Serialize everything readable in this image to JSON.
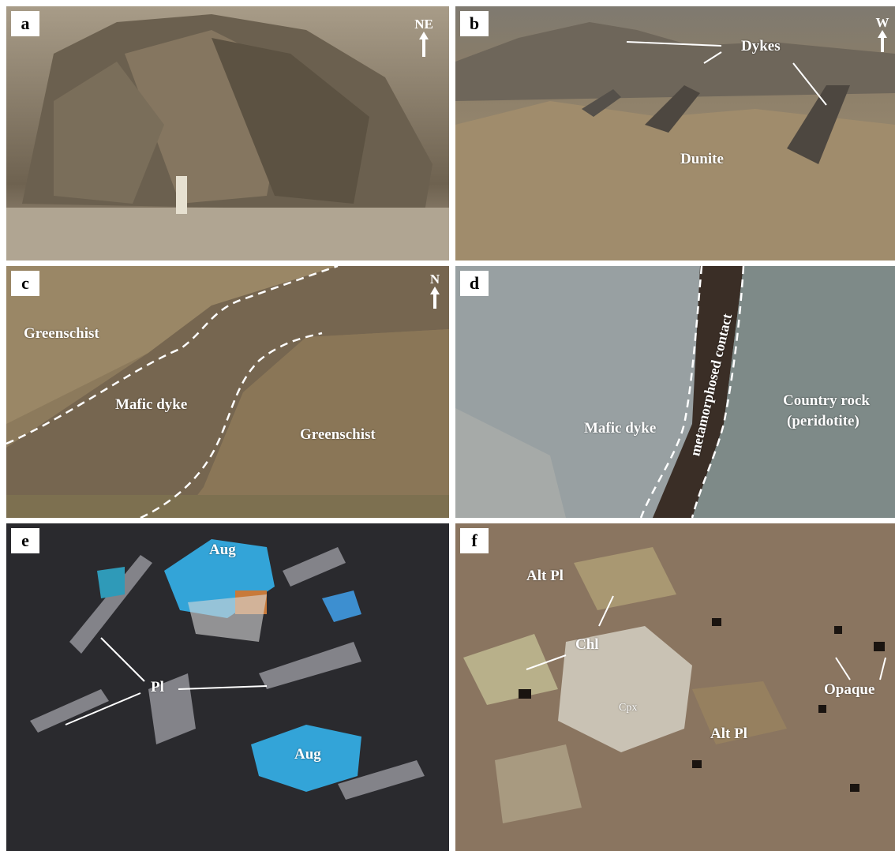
{
  "panels": {
    "a": {
      "letter": "a",
      "north": "NE"
    },
    "b": {
      "letter": "b",
      "north": "W",
      "labels": {
        "dykes": "Dykes",
        "dunite": "Dunite"
      }
    },
    "c": {
      "letter": "c",
      "north": "N",
      "labels": {
        "greenschist_top": "Greenschist",
        "mafic_dyke": "Mafic dyke",
        "greenschist_bottom": "Greenschist"
      }
    },
    "d": {
      "letter": "d",
      "labels": {
        "mafic_dyke": "Mafic dyke",
        "contact": "metamorphosed contact",
        "country_rock_1": "Country rock",
        "country_rock_2": "(peridotite)"
      }
    },
    "e": {
      "letter": "e",
      "labels": {
        "aug_top": "Aug",
        "pl": "Pl",
        "aug_bottom": "Aug"
      }
    },
    "f": {
      "letter": "f",
      "labels": {
        "alt_pl_top": "Alt Pl",
        "chl": "Chl",
        "cpx": "Cpx",
        "alt_pl_bottom": "Alt Pl",
        "opaque": "Opaque"
      }
    }
  },
  "colors": {
    "label": "#ffffff",
    "rock_a": "#8a7d6a",
    "desert_b": "#9c8b70",
    "slope_c": "#8c7a5c",
    "rock_d": "#8a9296",
    "xpl_e": "#2a2a2e",
    "ppl_f": "#8a7560"
  }
}
